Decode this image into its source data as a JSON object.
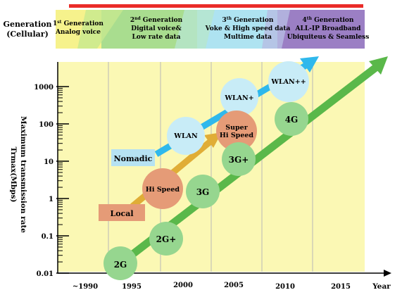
{
  "row_label": [
    "Generation",
    "(Cellular)"
  ],
  "generations": [
    {
      "ordinal": "1",
      "suffix": "st",
      "title": "Generation",
      "lines": [
        "Analog voice"
      ],
      "color": "#f6f28c"
    },
    {
      "ordinal": "2",
      "suffix": "nd",
      "title": "Generation",
      "lines": [
        "Digital voice&",
        "Low rate data"
      ],
      "color": "#a9dd8f"
    },
    {
      "ordinal": "3",
      "suffix": "th",
      "title": "Generation",
      "lines": [
        "Voke & High speed data",
        "Multime data"
      ],
      "color": "#aee3f1"
    },
    {
      "ordinal": "4",
      "suffix": "th",
      "title": "Generation",
      "lines": [
        "ALL-IP Broadband",
        "Ubiquiteus & Seamless"
      ],
      "color": "#9b7fc4"
    }
  ],
  "y_axis": {
    "label_lines": [
      "Maximum transmission rate",
      "Trmax(Mbps)"
    ],
    "ticks": [
      {
        "label": "0.01",
        "value": 0.01
      },
      {
        "label": "0.1",
        "value": 0.1
      },
      {
        "label": "1",
        "value": 1
      },
      {
        "label": "10",
        "value": 10
      },
      {
        "label": "100",
        "value": 100
      },
      {
        "label": "1000",
        "value": 1000
      }
    ],
    "scale": "log"
  },
  "x_axis": {
    "label": "Year",
    "ticks": [
      {
        "label": "~1990",
        "year": 1990
      },
      {
        "label": "1995",
        "year": 1995
      },
      {
        "label": "2000",
        "year": 2000
      },
      {
        "label": "2005",
        "year": 2005
      },
      {
        "label": "2010",
        "year": 2010
      },
      {
        "label": "2015",
        "year": 2015
      }
    ]
  },
  "tracks": [
    {
      "name": "Nomadic",
      "color": "#2fb8ec",
      "label_bg": "#b6e2f2",
      "nodes": [
        {
          "label": "WLAN"
        },
        {
          "label": "WLAN+"
        },
        {
          "label": "WLAN++"
        }
      ]
    },
    {
      "name": "Local",
      "color": "#e0ad36",
      "label_bg": "#e59b77",
      "nodes": [
        {
          "label": "Hi Speed"
        },
        {
          "label": "Super Hi Speed"
        }
      ]
    },
    {
      "name": "",
      "color": "#5ab84a",
      "label_bg": "",
      "nodes": [
        {
          "label": "2G"
        },
        {
          "label": "2G+"
        },
        {
          "label": "3G"
        },
        {
          "label": "3G+"
        },
        {
          "label": "4G"
        }
      ]
    }
  ],
  "node_colors": {
    "green": "#96d68f",
    "blue": "#c8ecf7",
    "orange": "#e59b77"
  }
}
